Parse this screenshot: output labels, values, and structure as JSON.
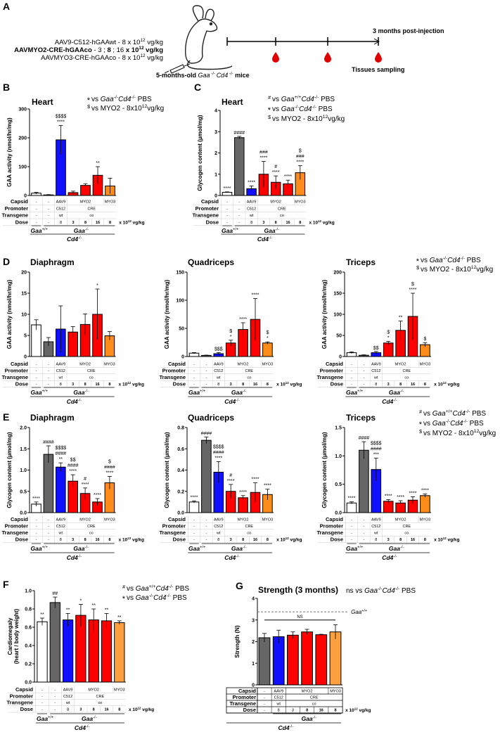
{
  "panel_a": {
    "label": "A",
    "constructs": [
      [
        [
          "AAV9-C512-hGAAwt - 8 x 10",
          ""
        ],
        [
          "12",
          "s"
        ],
        [
          " vg/kg",
          ""
        ]
      ],
      [
        [
          "AAVMYO2-CRE-hGAAco",
          "b"
        ],
        [
          " - 3 ; ",
          ""
        ],
        [
          "8",
          "b"
        ],
        [
          " ; 16 ",
          ""
        ],
        [
          "x 10",
          "b"
        ],
        [
          "12",
          "sb"
        ],
        [
          " vg/kg",
          "b"
        ]
      ],
      [
        [
          "AAVMYO3-CRE-hGAAco - 8 x 10",
          ""
        ],
        [
          "12",
          "s"
        ],
        [
          " vg/kg",
          ""
        ]
      ]
    ],
    "mice_caption": [
      [
        "5-months-old ",
        "b"
      ],
      [
        "Gaa",
        "i"
      ],
      [
        " -/- ",
        "s"
      ],
      [
        "Cd4",
        "i"
      ],
      [
        " -/-",
        "s"
      ],
      [
        " mice",
        "b"
      ]
    ],
    "endpoint_label": "3 months post-injection",
    "sampling_label": "Tissues sampling",
    "icons": [
      "mouse-icon",
      "syringe-icon",
      "blood-drop-icon"
    ]
  },
  "colors": {
    "wt": "#ffffff",
    "pbs": "#666666",
    "aav9": "#1010ff",
    "myo2": "#ff0000",
    "myo3": "#ff8c1a",
    "myo3_light": "#ffa040"
  },
  "legends": {
    "two": [
      {
        "sym": "*",
        "parts": [
          [
            "vs ",
            ""
          ],
          [
            "Gaa",
            "i"
          ],
          [
            "-/-",
            "s"
          ],
          [
            "Cd4",
            "i"
          ],
          [
            "-/-",
            "s"
          ],
          [
            " PBS",
            ""
          ]
        ]
      },
      {
        "sym": "$",
        "parts": [
          [
            "vs MYO2 - 8x10",
            ""
          ],
          [
            "12",
            "s"
          ],
          [
            "vg/kg",
            ""
          ]
        ]
      }
    ],
    "three": [
      {
        "sym": "#",
        "parts": [
          [
            "vs ",
            ""
          ],
          [
            "Gaa",
            "i"
          ],
          [
            "+/+",
            "s"
          ],
          [
            "Cd4",
            "i"
          ],
          [
            "-/-",
            "s"
          ],
          [
            " PBS",
            ""
          ]
        ]
      },
      {
        "sym": "*",
        "parts": [
          [
            "vs ",
            ""
          ],
          [
            "Gaa",
            "i"
          ],
          [
            "-/-",
            "s"
          ],
          [
            "Cd4",
            "i"
          ],
          [
            "-/-",
            "s"
          ],
          [
            " PBS",
            ""
          ]
        ]
      },
      {
        "sym": "$",
        "parts": [
          [
            "vs MYO2 - 8x10",
            ""
          ],
          [
            "12",
            "s"
          ],
          [
            "vg/kg",
            ""
          ]
        ]
      }
    ],
    "cardio": [
      {
        "sym": "#",
        "parts": [
          [
            "vs ",
            ""
          ],
          [
            "Gaa",
            "i"
          ],
          [
            "+/+",
            "s"
          ],
          [
            "Cd4",
            "i"
          ],
          [
            "-/-",
            "s"
          ],
          [
            " PBS",
            ""
          ]
        ]
      },
      {
        "sym": "*",
        "parts": [
          [
            "vs ",
            ""
          ],
          [
            "Gaa",
            "i"
          ],
          [
            "-/-",
            "s"
          ],
          [
            "Cd4",
            "i"
          ],
          [
            "-/-",
            "s"
          ],
          [
            " PBS",
            ""
          ]
        ]
      }
    ],
    "strength": [
      {
        "sym": "",
        "parts": [
          [
            "ns vs ",
            ""
          ],
          [
            "Gaa",
            "i"
          ],
          [
            "-/-",
            "s"
          ],
          [
            "Cd4",
            "i"
          ],
          [
            "-/-",
            "s"
          ],
          [
            " PBS",
            ""
          ]
        ]
      }
    ]
  },
  "tables": {
    "standard": {
      "rows": [
        {
          "label": "Capsid",
          "cells": [
            [
              "-",
              1
            ],
            [
              "-",
              1
            ],
            [
              "AAV9",
              1
            ],
            [
              "MYO2",
              3
            ],
            [
              "MYO3",
              1
            ]
          ]
        },
        {
          "label": "Promoter",
          "cells": [
            [
              "-",
              1
            ],
            [
              "-",
              1
            ],
            [
              "C512",
              1
            ],
            [
              "CRE",
              4
            ]
          ]
        },
        {
          "label": "Transgene",
          "cells": [
            [
              "-",
              1
            ],
            [
              "-",
              1
            ],
            [
              "wt",
              1
            ],
            [
              "co",
              4
            ]
          ]
        },
        {
          "label": "Dose",
          "cells": [
            [
              "-",
              1
            ],
            [
              "-",
              1
            ],
            [
              "8",
              1
            ],
            [
              "3",
              1
            ],
            [
              "8",
              1
            ],
            [
              "16",
              1
            ],
            [
              "8",
              1
            ]
          ]
        }
      ],
      "dose_unit": [
        [
          "x 10",
          ""
        ],
        [
          "12",
          "s"
        ],
        [
          " vg/kg",
          ""
        ]
      ],
      "genotypes": [
        {
          "parts": [
            [
              "Gaa",
              "bi"
            ],
            [
              "+/+",
              "s"
            ]
          ],
          "cols": [
            0,
            0
          ],
          "level": 0
        },
        {
          "parts": [
            [
              "Gaa",
              "bi"
            ],
            [
              "-/-",
              "s"
            ]
          ],
          "cols": [
            1,
            6
          ],
          "level": 0
        },
        {
          "parts": [
            [
              "Cd4",
              "bi"
            ],
            [
              "-/-",
              "s"
            ]
          ],
          "cols": [
            0,
            6
          ],
          "level": 1
        }
      ]
    },
    "strength": {
      "rows": [
        {
          "label": "Capsid",
          "cells": [
            [
              "-",
              1
            ],
            [
              "AAV9",
              1
            ],
            [
              "MYO2",
              3
            ],
            [
              "MYO3",
              1
            ]
          ]
        },
        {
          "label": "Promoter",
          "cells": [
            [
              "-",
              1
            ],
            [
              "C512",
              1
            ],
            [
              "CRE",
              4
            ]
          ]
        },
        {
          "label": "Transgene",
          "cells": [
            [
              "-",
              1
            ],
            [
              "wt",
              1
            ],
            [
              "co",
              4
            ]
          ]
        },
        {
          "label": "Dose",
          "cells": [
            [
              "-",
              1
            ],
            [
              "8",
              1
            ],
            [
              "3",
              1
            ],
            [
              "8",
              1
            ],
            [
              "16",
              1
            ],
            [
              "8",
              1
            ]
          ]
        }
      ],
      "dose_unit": [
        [
          "x 10",
          ""
        ],
        [
          "12",
          "s"
        ],
        [
          " vg/kg",
          ""
        ]
      ],
      "genotypes": [
        {
          "parts": [
            [
              "Gaa",
              "bi"
            ],
            [
              "-/-",
              "s"
            ]
          ],
          "cols": [
            1,
            5
          ],
          "level": 0
        },
        {
          "parts": [
            [
              "Cd4",
              "bi"
            ],
            [
              "-/-",
              "s"
            ]
          ],
          "cols": [
            0,
            5
          ],
          "level": 1
        }
      ]
    }
  },
  "chart_data": [
    {
      "id": "B",
      "panel_label": "B",
      "type": "bar",
      "title": "Heart",
      "ylabel": [
        "GAA activity (nmol/hr/mg)"
      ],
      "ylim": [
        0,
        300
      ],
      "yticks": [
        "0",
        "100",
        "200",
        "300"
      ],
      "colors": [
        "wt",
        "pbs",
        "aav9",
        "myo2",
        "myo2",
        "myo2",
        "myo3"
      ],
      "values": [
        8,
        2,
        193,
        10,
        35,
        70,
        33
      ],
      "errors": [
        3,
        1,
        50,
        5,
        6,
        30,
        27
      ],
      "annotations": [
        "",
        "",
        "$$$$\n****",
        "",
        "",
        "**",
        ""
      ],
      "legend": "two",
      "table": "standard"
    },
    {
      "id": "C",
      "panel_label": "C",
      "type": "bar",
      "title": "Heart",
      "ylabel": [
        "Glycogen content (µmol/mg)"
      ],
      "ylim": [
        0,
        4
      ],
      "yticks": [
        "0",
        "1",
        "2",
        "3",
        "4"
      ],
      "colors": [
        "wt",
        "pbs",
        "aav9",
        "myo2",
        "myo2",
        "myo2",
        "myo3"
      ],
      "values": [
        0.15,
        2.72,
        0.32,
        1.0,
        0.62,
        0.55,
        1.07
      ],
      "errors": [
        0.02,
        0.06,
        0.13,
        0.6,
        0.3,
        0.17,
        0.33
      ],
      "annotations": [
        "****",
        "####",
        "****",
        "###\n****",
        "#\n****",
        "****",
        "$\n###\n****"
      ],
      "legend": "three",
      "table": "standard"
    },
    {
      "id": "D1",
      "panel_label": "D",
      "type": "bar",
      "title": "Diaphragm",
      "ylabel": [
        "GAA activity (nmol/hr/mg)"
      ],
      "ylim": [
        0,
        20
      ],
      "yticks": [
        "0",
        "5",
        "10",
        "15",
        "20"
      ],
      "colors": [
        "wt",
        "pbs",
        "aav9",
        "myo2",
        "myo2",
        "myo2",
        "myo3"
      ],
      "values": [
        7.5,
        3.5,
        6.5,
        5.8,
        7.6,
        10,
        4.9
      ],
      "errors": [
        1.2,
        1,
        5.5,
        1.3,
        2.5,
        6,
        1
      ],
      "annotations": [
        "",
        "",
        "",
        "",
        "",
        "*",
        ""
      ],
      "table": "standard"
    },
    {
      "id": "D2",
      "type": "bar",
      "title": "Quadriceps",
      "ylabel": [
        "GAA activity (nmol/hr/mg)"
      ],
      "ylim": [
        0,
        150
      ],
      "yticks": [
        "0",
        "50",
        "100",
        "150"
      ],
      "colors": [
        "wt",
        "pbs",
        "aav9",
        "myo2",
        "myo2",
        "myo2",
        "myo3"
      ],
      "values": [
        6,
        2,
        5,
        24,
        48,
        66,
        24
      ],
      "errors": [
        1,
        0.5,
        2,
        5,
        12,
        37,
        2
      ],
      "annotations": [
        "",
        "",
        "$$$",
        "$\n*",
        "****",
        "****",
        "$\n*"
      ],
      "table": "standard"
    },
    {
      "id": "D3",
      "type": "bar",
      "title": "Triceps",
      "ylabel": [
        "GAA activity (nmol/hr/mg)"
      ],
      "ylim": [
        0,
        200
      ],
      "yticks": [
        "0",
        "50",
        "100",
        "150",
        "200"
      ],
      "colors": [
        "wt",
        "pbs",
        "aav9",
        "myo2",
        "myo2",
        "myo2",
        "myo3"
      ],
      "values": [
        9,
        3,
        9,
        32,
        62,
        95,
        28
      ],
      "errors": [
        2,
        1,
        3,
        4,
        22,
        55,
        5
      ],
      "annotations": [
        "",
        "",
        "$$",
        "$\n*",
        "**",
        "$\n****",
        "$"
      ],
      "legend": "two",
      "table": "standard"
    },
    {
      "id": "E1",
      "panel_label": "E",
      "type": "bar",
      "title": "Diaphragm",
      "ylabel": [
        "Glycogen content (µmol/mg)"
      ],
      "ylim": [
        0,
        2
      ],
      "yticks": [
        "0.0",
        "0.5",
        "1.0",
        "1.5",
        "2.0"
      ],
      "colors": [
        "wt",
        "pbs",
        "aav9",
        "myo2",
        "myo2",
        "myo2",
        "myo3"
      ],
      "values": [
        0.2,
        1.37,
        1.07,
        0.74,
        0.45,
        0.25,
        0.7
      ],
      "errors": [
        0.05,
        0.2,
        0.1,
        0.15,
        0.13,
        0.08,
        0.15
      ],
      "annotations": [
        "****",
        "####",
        "$$$$\n####\n**",
        "$$\n####\n****",
        "#\n****",
        "****",
        "$\n####\n****"
      ],
      "table": "standard"
    },
    {
      "id": "E2",
      "type": "bar",
      "title": "Quadriceps",
      "ylabel": [
        "Glycogen content (µmol/mg)"
      ],
      "ylim": [
        0,
        0.8
      ],
      "yticks": [
        "0.0",
        "0.2",
        "0.4",
        "0.6",
        "0.8"
      ],
      "colors": [
        "wt",
        "pbs",
        "aav9",
        "myo2",
        "myo2",
        "myo2",
        "myo3"
      ],
      "values": [
        0.1,
        0.68,
        0.38,
        0.2,
        0.14,
        0.19,
        0.17
      ],
      "errors": [
        0.01,
        0.03,
        0.1,
        0.065,
        0.02,
        0.09,
        0.05
      ],
      "annotations": [
        "****",
        "####",
        "$$$$\n####\n****",
        "#\n****",
        "****",
        "****",
        "****"
      ],
      "table": "standard"
    },
    {
      "id": "E3",
      "type": "bar",
      "title": "Triceps",
      "ylabel": [
        "Glycogen content (µmol/mg)"
      ],
      "ylim": [
        0,
        1.5
      ],
      "yticks": [
        "0.0",
        "0.5",
        "1.0",
        "1.5"
      ],
      "colors": [
        "wt",
        "pbs",
        "aav9",
        "myo2",
        "myo2",
        "myo2",
        "myo3"
      ],
      "values": [
        0.17,
        1.1,
        0.76,
        0.2,
        0.17,
        0.22,
        0.3
      ],
      "errors": [
        0.02,
        0.15,
        0.2,
        0.03,
        0.04,
        0.06,
        0.03
      ],
      "annotations": [
        "****",
        "####",
        "$$$$\n####\n***",
        "****",
        "****",
        "****",
        "****"
      ],
      "legend": "three",
      "table": "standard"
    },
    {
      "id": "F",
      "panel_label": "F",
      "type": "bar",
      "title": "",
      "ylabel": [
        "Cardiomegaly",
        "(heart / body weight)"
      ],
      "ylim": [
        0,
        1
      ],
      "yticks": [
        "0.0",
        "0.2",
        "0.4",
        "0.6",
        "0.8",
        "1.0"
      ],
      "colors": [
        "wt",
        "pbs",
        "aav9",
        "myo2",
        "myo2",
        "myo2",
        "myo3_light"
      ],
      "values": [
        0.66,
        0.87,
        0.68,
        0.73,
        0.68,
        0.67,
        0.65
      ],
      "errors": [
        0.04,
        0.06,
        0.07,
        0.12,
        0.12,
        0.08,
        0.02
      ],
      "annotations": [
        "**",
        "##",
        "**",
        "*",
        "**",
        "**",
        "**"
      ],
      "legend": "cardio",
      "table": "standard"
    },
    {
      "id": "G",
      "panel_label": "G",
      "type": "bar",
      "title": "Strength (3 months)",
      "ylabel": [
        "Strength (N)"
      ],
      "ylim": [
        0,
        4
      ],
      "yticks": [
        "0",
        "1",
        "2",
        "3",
        "4"
      ],
      "colors": [
        "pbs",
        "aav9",
        "myo2",
        "myo2",
        "myo2",
        "myo3_light"
      ],
      "values": [
        2.18,
        2.23,
        2.3,
        2.45,
        2.32,
        2.45
      ],
      "errors": [
        0.2,
        0.3,
        0.15,
        0.12,
        0.02,
        0.33
      ],
      "annotations": [
        "",
        "",
        "",
        "",
        "",
        ""
      ],
      "reference_line": {
        "value": 3.38,
        "label": [
          [
            "Gaa",
            "i"
          ],
          [
            "+/+",
            "s"
          ]
        ]
      },
      "bracket": {
        "value": 3.0,
        "label": "NS",
        "cols": [
          0,
          5
        ]
      },
      "legend": "strength",
      "table": "strength"
    }
  ]
}
